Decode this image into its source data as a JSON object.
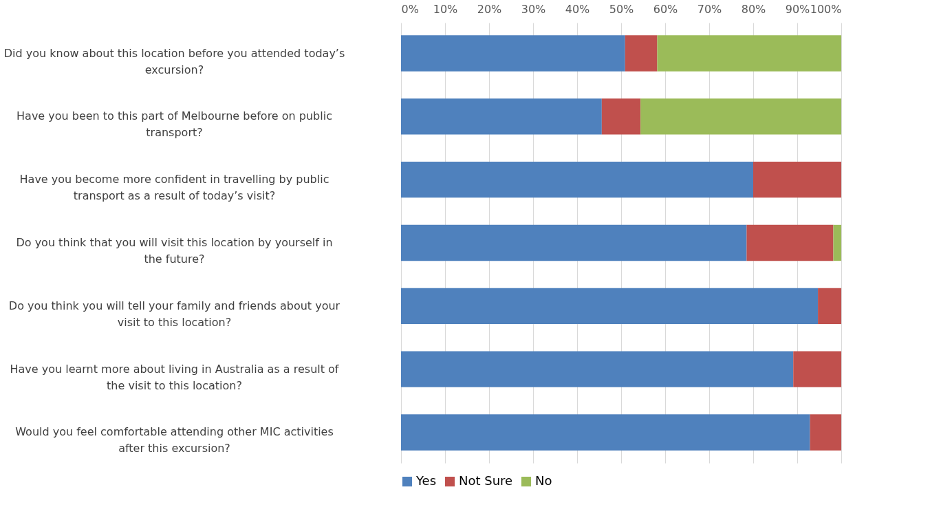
{
  "chart_data": {
    "type": "bar",
    "orientation": "horizontal",
    "stacked": true,
    "categories": [
      "Did you know about this location before you attended today’s excursion?",
      "Have you been to this part of Melbourne before on public transport?",
      "Have you become more confident in travelling by public transport as a result of today’s visit?",
      "Do you think that you will visit this location by yourself in the future?",
      "Do you think you will tell your family and friends about your visit to this location?",
      "Have you learnt more about living in Australia as a result of the visit to this location?",
      "Would you feel comfortable attending other MIC activities after this excursion?"
    ],
    "series": [
      {
        "name": "Yes",
        "color": "#4f81bd",
        "values": [
          50.9,
          45.6,
          80.0,
          78.5,
          94.7,
          89.1,
          92.9
        ]
      },
      {
        "name": "Not Sure",
        "color": "#c0504d",
        "values": [
          7.3,
          8.8,
          20.0,
          19.7,
          5.3,
          10.9,
          7.1
        ]
      },
      {
        "name": "No",
        "color": "#9bbb59",
        "values": [
          41.8,
          45.6,
          null,
          1.8,
          null,
          null,
          null
        ]
      }
    ],
    "xlim": [
      0,
      100
    ],
    "xticks": [
      {
        "value": 0,
        "label": "0%"
      },
      {
        "value": 10,
        "label": "10%"
      },
      {
        "value": 20,
        "label": "20%"
      },
      {
        "value": 30,
        "label": "30%"
      },
      {
        "value": 40,
        "label": "40%"
      },
      {
        "value": 50,
        "label": "50%"
      },
      {
        "value": 60,
        "label": "60%"
      },
      {
        "value": 70,
        "label": "70%"
      },
      {
        "value": 80,
        "label": "80%"
      },
      {
        "value": 90,
        "label": "90%"
      },
      {
        "value": 100,
        "label": "100%"
      }
    ],
    "grid": "x",
    "legend": "bottom"
  }
}
